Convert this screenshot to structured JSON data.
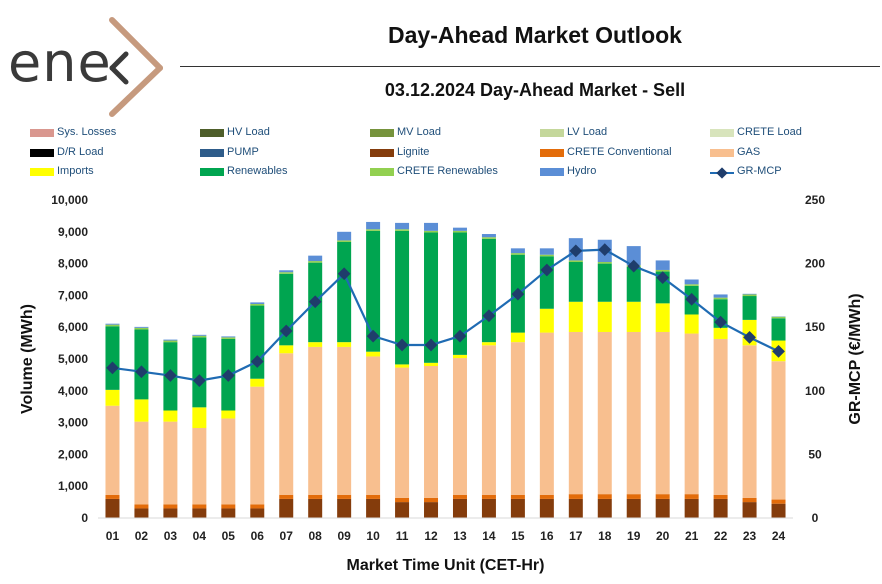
{
  "logo": {
    "text": "ene",
    "x_glyph": "x"
  },
  "header": {
    "title": "Day-Ahead Market Outlook",
    "subtitle": "03.12.2024  Day-Ahead Market - Sell"
  },
  "legend": [
    {
      "name": "Sys. Losses",
      "color": "#d9978f",
      "kind": "bar"
    },
    {
      "name": "HV Load",
      "color": "#4e5e2a",
      "kind": "bar"
    },
    {
      "name": "MV Load",
      "color": "#76933c",
      "kind": "bar"
    },
    {
      "name": "LV Load",
      "color": "#c4d79b",
      "kind": "bar"
    },
    {
      "name": "CRETE Load",
      "color": "#d8e4bc",
      "kind": "bar"
    },
    {
      "name": "D/R Load",
      "color": "#000000",
      "kind": "bar"
    },
    {
      "name": "PUMP",
      "color": "#2e5c8a",
      "kind": "bar"
    },
    {
      "name": "Lignite",
      "color": "#843c0c",
      "kind": "bar"
    },
    {
      "name": "CRETE Conventional",
      "color": "#e36c0a",
      "kind": "bar"
    },
    {
      "name": "GAS",
      "color": "#f8bf8f",
      "kind": "bar"
    },
    {
      "name": "Imports",
      "color": "#ffff00",
      "kind": "bar"
    },
    {
      "name": "Renewables",
      "color": "#00a550",
      "kind": "bar"
    },
    {
      "name": "CRETE Renewables",
      "color": "#92d050",
      "kind": "bar"
    },
    {
      "name": "Hydro",
      "color": "#5b8ed6",
      "kind": "bar"
    },
    {
      "name": "GR-MCP",
      "color": "#1f6bb3",
      "kind": "line",
      "marker_color": "#1f3d6b"
    }
  ],
  "chart_data": {
    "type": "bar",
    "stacked": true,
    "xlabel": "Market Time Unit (CET-Hr)",
    "ylabel": "Volume (MWh)",
    "y2label": "GR-MCP (€/MWh)",
    "ylim": [
      0,
      10000
    ],
    "y2lim": [
      0,
      250
    ],
    "yticks": [
      "0",
      "1,000",
      "2,000",
      "3,000",
      "4,000",
      "5,000",
      "6,000",
      "7,000",
      "8,000",
      "9,000",
      "10,000"
    ],
    "y2ticks": [
      "0",
      "50",
      "100",
      "150",
      "200",
      "250"
    ],
    "categories": [
      "01",
      "02",
      "03",
      "04",
      "05",
      "06",
      "07",
      "08",
      "09",
      "10",
      "11",
      "12",
      "13",
      "14",
      "15",
      "16",
      "17",
      "18",
      "19",
      "20",
      "21",
      "22",
      "23",
      "24"
    ],
    "series": [
      {
        "name": "Lignite",
        "color": "#843c0c",
        "values": [
          600,
          300,
          300,
          300,
          300,
          300,
          600,
          600,
          600,
          600,
          500,
          500,
          600,
          600,
          600,
          600,
          600,
          600,
          600,
          600,
          600,
          600,
          500,
          450
        ]
      },
      {
        "name": "CRETE Conventional",
        "color": "#e36c0a",
        "values": [
          130,
          130,
          130,
          130,
          130,
          130,
          130,
          130,
          130,
          130,
          130,
          130,
          130,
          130,
          130,
          130,
          150,
          150,
          150,
          150,
          150,
          130,
          130,
          130
        ]
      },
      {
        "name": "GAS",
        "color": "#f8bf8f",
        "values": [
          2800,
          2600,
          2600,
          2400,
          2700,
          3700,
          4450,
          4650,
          4650,
          4350,
          4100,
          4150,
          4300,
          4700,
          4800,
          5100,
          5100,
          5100,
          5100,
          5100,
          5050,
          4900,
          4800,
          4350
        ]
      },
      {
        "name": "Imports",
        "color": "#ffff00",
        "values": [
          500,
          700,
          350,
          650,
          250,
          250,
          250,
          150,
          150,
          150,
          100,
          100,
          100,
          100,
          300,
          750,
          950,
          950,
          950,
          900,
          600,
          350,
          800,
          650
        ]
      },
      {
        "name": "Renewables",
        "color": "#00a550",
        "values": [
          2000,
          2200,
          2150,
          2200,
          2250,
          2300,
          2250,
          2500,
          3150,
          3800,
          4200,
          4100,
          3850,
          3250,
          2450,
          1650,
          1250,
          1200,
          1100,
          1000,
          900,
          900,
          750,
          700
        ]
      },
      {
        "name": "CRETE Renewables",
        "color": "#92d050",
        "values": [
          50,
          50,
          50,
          50,
          50,
          50,
          50,
          50,
          50,
          50,
          50,
          50,
          50,
          50,
          50,
          50,
          50,
          50,
          50,
          50,
          50,
          50,
          50,
          50
        ]
      },
      {
        "name": "Hydro",
        "color": "#5b8ed6",
        "values": [
          30,
          30,
          30,
          30,
          30,
          50,
          60,
          170,
          270,
          230,
          200,
          250,
          100,
          100,
          150,
          200,
          700,
          700,
          600,
          300,
          150,
          100,
          20,
          10
        ]
      }
    ],
    "line_series": {
      "name": "GR-MCP",
      "axis": "right",
      "color": "#1f6bb3",
      "values": [
        118,
        115,
        112,
        108,
        112,
        123,
        147,
        170,
        192,
        143,
        136,
        136,
        143,
        159,
        176,
        195,
        210,
        211,
        198,
        189,
        172,
        154,
        142,
        131
      ]
    }
  }
}
